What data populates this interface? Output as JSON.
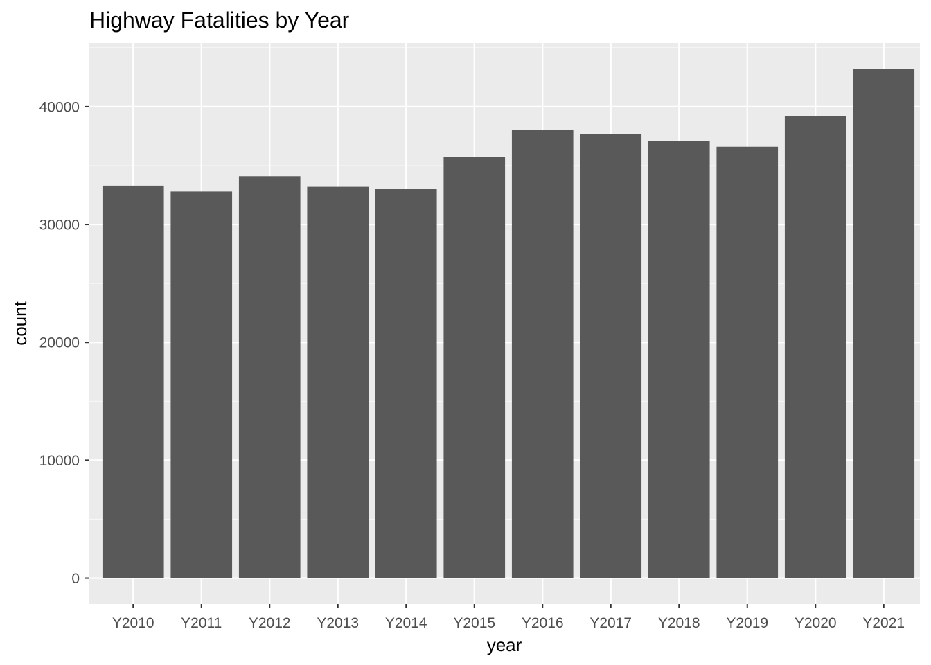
{
  "chart_data": {
    "type": "bar",
    "title": "Highway Fatalities by Year",
    "xlabel": "year",
    "ylabel": "count",
    "categories": [
      "Y2010",
      "Y2011",
      "Y2012",
      "Y2013",
      "Y2014",
      "Y2015",
      "Y2016",
      "Y2017",
      "Y2018",
      "Y2019",
      "Y2020",
      "Y2021"
    ],
    "values": [
      33300,
      32800,
      34100,
      33200,
      33000,
      35750,
      38050,
      37700,
      37100,
      36600,
      39200,
      43200
    ],
    "ylim": [
      -2200,
      45400
    ],
    "yticks": [
      0,
      10000,
      20000,
      30000,
      40000
    ],
    "ytick_labels": [
      "0",
      "10000",
      "20000",
      "30000",
      "40000"
    ],
    "grid": true,
    "legend": "none",
    "colors": {
      "bar": "#595959",
      "panel": "#ebebeb",
      "grid_major": "#ffffff",
      "grid_minor": "#f5f5f5",
      "tick_text": "#4d4d4d",
      "tick_mark": "#333333"
    }
  }
}
